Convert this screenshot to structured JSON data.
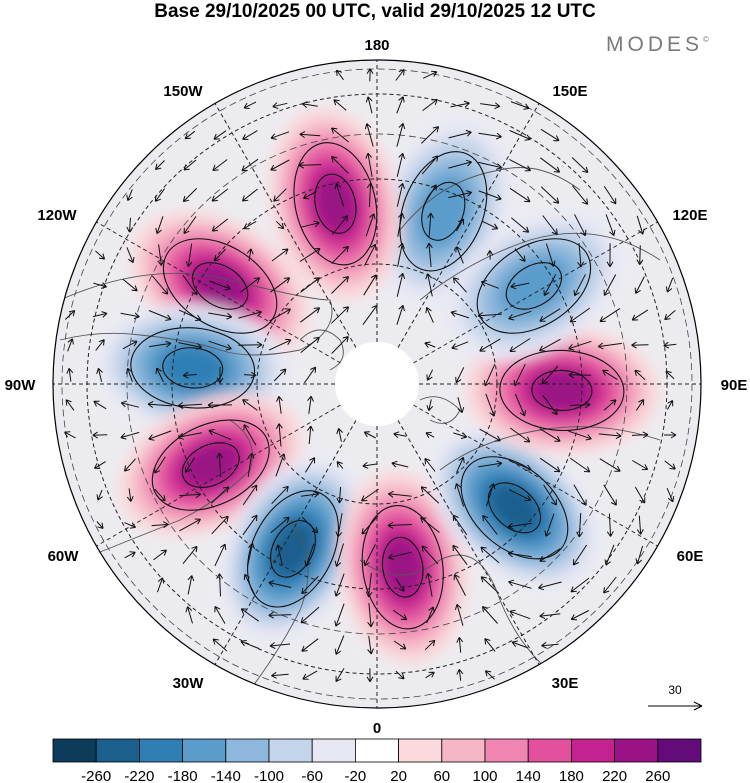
{
  "title": "Base 29/10/2025 00 UTC, valid 29/10/2025 12 UTC",
  "logo": {
    "text": "MODES",
    "mark": "©"
  },
  "longitude_labels": {
    "lon_180": "180",
    "lon_150E": "150E",
    "lon_120E": "120E",
    "lon_90E": "90E",
    "lon_60E": "60E",
    "lon_30E": "30E",
    "lon_0": "0",
    "lon_30W": "30W",
    "lon_60W": "60W",
    "lon_90W": "90W",
    "lon_120W": "120W",
    "lon_150W": "150W"
  },
  "vector_reference": {
    "value": "30"
  },
  "colorbar": {
    "colors": [
      "#0d3b5c",
      "#1a5f8e",
      "#2f7fb5",
      "#5a9ccb",
      "#8db7dc",
      "#c4d4ea",
      "#e8e8f4",
      "#ffffff",
      "#fadadd",
      "#f5b6c6",
      "#ef86b2",
      "#e3519e",
      "#c4228f",
      "#9a1285",
      "#630c79"
    ],
    "labels": [
      "-260",
      "-220",
      "-180",
      "-140",
      "-100",
      "-60",
      "-20",
      "20",
      "60",
      "100",
      "140",
      "180",
      "220",
      "260"
    ]
  },
  "anomaly_centers": [
    {
      "lon": 159,
      "sign": "negative",
      "magnitude": 160
    },
    {
      "lon": 193,
      "sign": "positive",
      "magnitude": 230
    },
    {
      "lon": 238,
      "sign": "positive",
      "magnitude": 240
    },
    {
      "lon": 265,
      "sign": "negative",
      "magnitude": 190
    },
    {
      "lon": 296,
      "sign": "positive",
      "magnitude": 250
    },
    {
      "lon": 333,
      "sign": "negative",
      "magnitude": 230
    },
    {
      "lon": 8,
      "sign": "positive",
      "magnitude": 240
    },
    {
      "lon": 48,
      "sign": "negative",
      "magnitude": 250
    },
    {
      "lon": 88,
      "sign": "positive",
      "magnitude": 230
    },
    {
      "lon": 122,
      "sign": "negative",
      "magnitude": 170
    }
  ]
}
